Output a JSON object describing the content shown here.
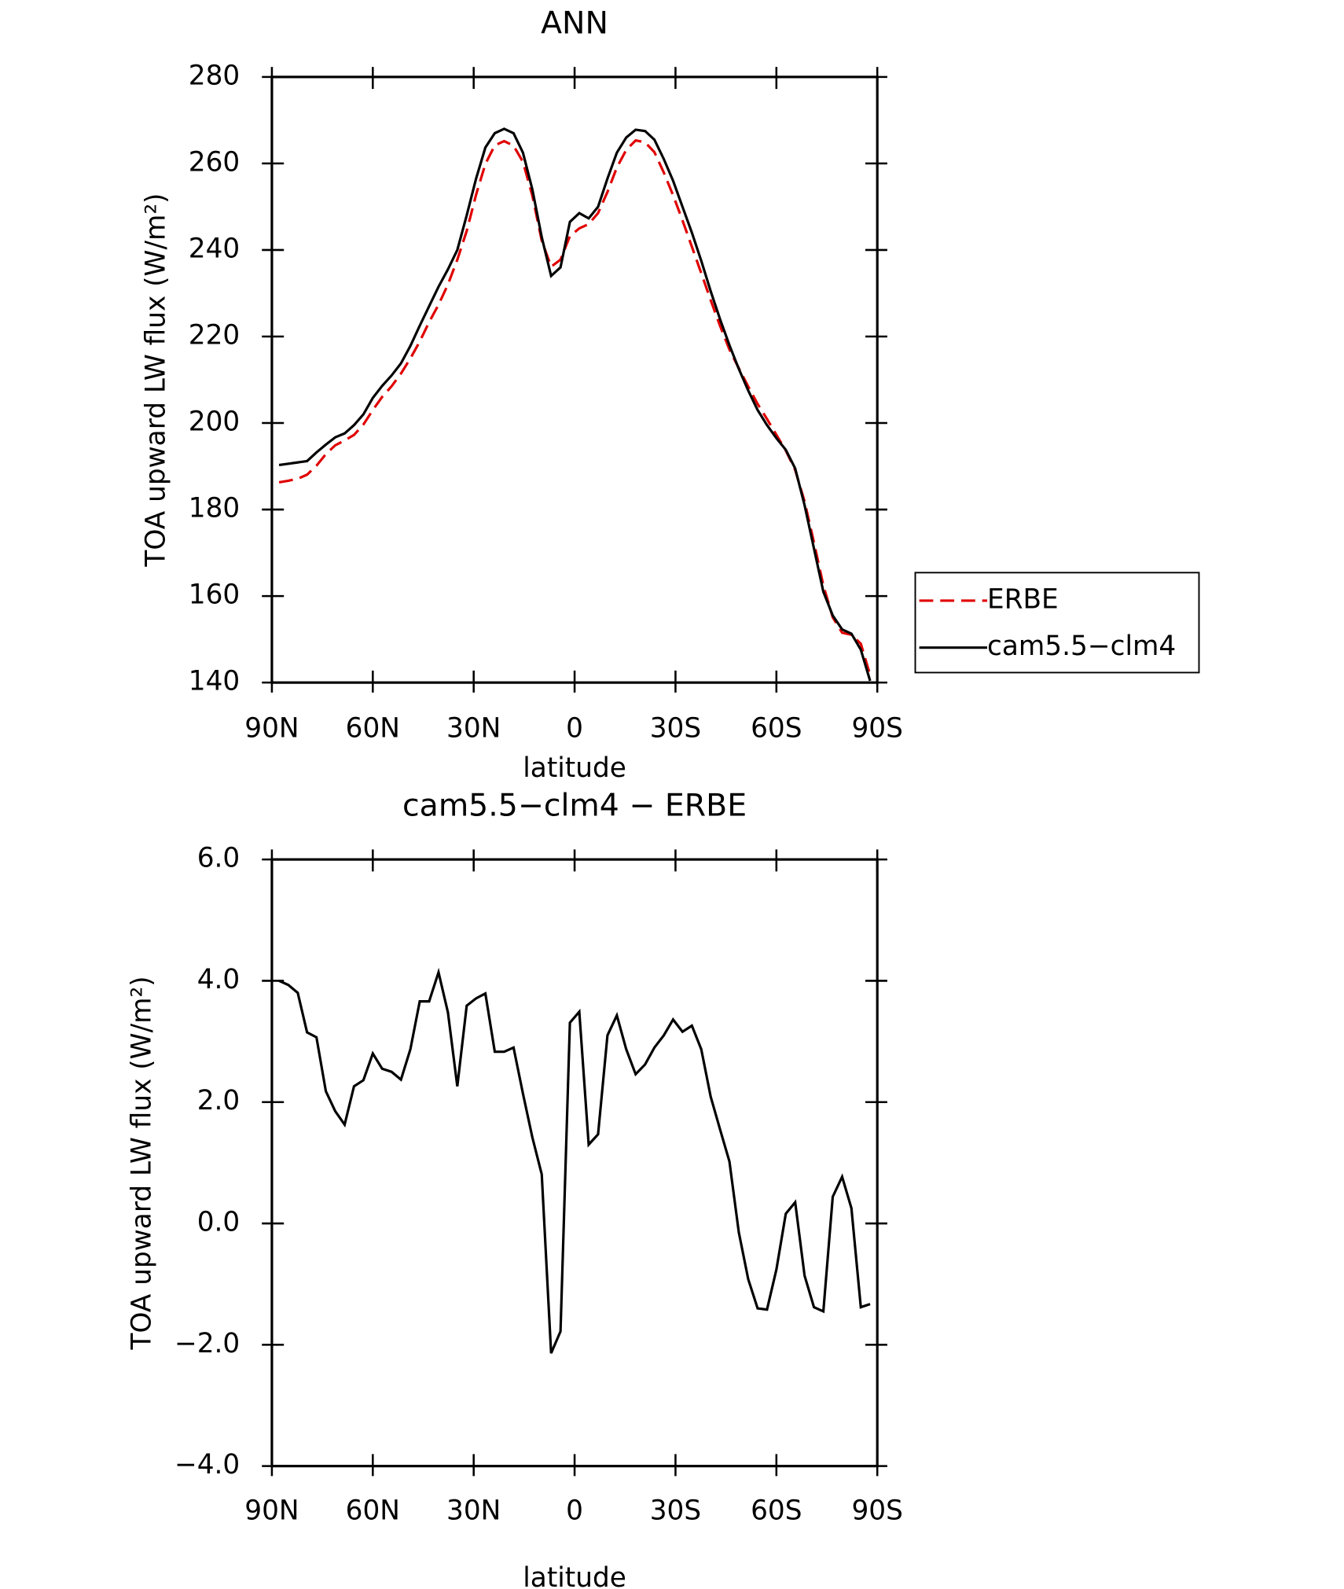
{
  "chart_data": [
    {
      "type": "line",
      "title": "ANN",
      "x_label": "latitude",
      "y_label": "TOA upward LW flux (W/m²)",
      "x": [
        87.86,
        85.1,
        82.31,
        79.53,
        76.74,
        73.95,
        71.16,
        68.37,
        65.58,
        62.79,
        60.0,
        57.21,
        54.42,
        51.63,
        48.84,
        46.05,
        43.26,
        40.47,
        37.67,
        34.88,
        32.09,
        29.3,
        26.51,
        23.72,
        20.93,
        18.14,
        15.35,
        12.56,
        9.77,
        6.98,
        4.19,
        1.4,
        -1.4,
        -4.19,
        -6.98,
        -9.77,
        -12.56,
        -15.35,
        -18.14,
        -20.93,
        -23.72,
        -26.51,
        -29.3,
        -32.09,
        -34.88,
        -37.67,
        -40.47,
        -43.26,
        -46.05,
        -48.84,
        -51.63,
        -54.42,
        -57.21,
        -60.0,
        -62.79,
        -65.58,
        -68.37,
        -71.16,
        -73.95,
        -76.74,
        -79.53,
        -82.31,
        -85.1,
        -87.86
      ],
      "series": [
        {
          "name": "ERBE",
          "color": "#e00000",
          "dash": true,
          "values": [
            186.3,
            186.67,
            187.1,
            188.05,
            190.13,
            192.82,
            194.85,
            195.97,
            197.24,
            199.64,
            203.0,
            206.05,
            208.5,
            211.43,
            214.93,
            218.84,
            223.34,
            227.36,
            232.02,
            237.74,
            244.41,
            252.79,
            259.91,
            264.17,
            265.17,
            264.1,
            260.36,
            252.58,
            242.19,
            236.14,
            237.78,
            243.19,
            245.01,
            246.0,
            248.53,
            253.4,
            259.07,
            263.13,
            265.34,
            264.88,
            262.6,
            257.9,
            252.64,
            246.84,
            240.74,
            234.63,
            228.41,
            222.45,
            216.98,
            212.65,
            208.42,
            204.4,
            200.92,
            197.26,
            193.64,
            189.15,
            181.86,
            172.38,
            162.45,
            155.06,
            151.53,
            151.05,
            148.98,
            141.73
          ]
        },
        {
          "name": "cam5.5−clm4",
          "color": "#000000",
          "dash": false,
          "values": [
            190.3,
            190.6,
            190.9,
            191.2,
            193.2,
            195,
            196.7,
            197.6,
            199.5,
            202,
            205.8,
            208.6,
            211,
            213.8,
            217.8,
            222.5,
            227,
            231.5,
            235.5,
            240,
            248,
            256.5,
            263.7,
            267,
            268,
            267,
            262.5,
            254,
            243,
            234,
            236,
            246.5,
            248.5,
            247.3,
            250,
            256.5,
            262.5,
            266,
            267.8,
            267.5,
            265.5,
            261,
            256,
            250,
            244,
            237.5,
            230.5,
            224,
            218,
            212.5,
            207.5,
            203,
            199.5,
            196.5,
            193.8,
            189.5,
            181,
            171,
            161,
            155.5,
            152.3,
            151.3,
            147.6,
            140.4
          ]
        }
      ],
      "xlim": [
        90,
        -90
      ],
      "xticks": [
        {
          "value": 90,
          "label": "90N"
        },
        {
          "value": 60,
          "label": "60N"
        },
        {
          "value": 30,
          "label": "30N"
        },
        0,
        {
          "value": -30,
          "label": "30S"
        },
        {
          "value": -60,
          "label": "60S"
        },
        {
          "value": -90,
          "label": "90S"
        }
      ],
      "ylim": [
        140,
        280
      ],
      "yticks": [
        140,
        160,
        180,
        200,
        220,
        240,
        260,
        280
      ],
      "legend": "right"
    },
    {
      "type": "line",
      "title": "cam5.5−clm4 − ERBE",
      "x_label": "latitude",
      "y_label": "TOA upward LW flux (W/m²)",
      "x": [
        87.86,
        85.1,
        82.31,
        79.53,
        76.74,
        73.95,
        71.16,
        68.37,
        65.58,
        62.79,
        60.0,
        57.21,
        54.42,
        51.63,
        48.84,
        46.05,
        43.26,
        40.47,
        37.67,
        34.88,
        32.09,
        29.3,
        26.51,
        23.72,
        20.93,
        18.14,
        15.35,
        12.56,
        9.77,
        6.98,
        4.19,
        1.4,
        -1.4,
        -4.19,
        -6.98,
        -9.77,
        -12.56,
        -15.35,
        -18.14,
        -20.93,
        -23.72,
        -26.51,
        -29.3,
        -32.09,
        -34.88,
        -37.67,
        -40.47,
        -43.26,
        -46.05,
        -48.84,
        -51.63,
        -54.42,
        -57.21,
        -60.0,
        -62.79,
        -65.58,
        -68.37,
        -71.16,
        -73.95,
        -76.74,
        -79.53,
        -82.31,
        -85.1,
        -87.86
      ],
      "series": [
        {
          "color": "#000000",
          "dash": false,
          "values": [
            4.0,
            3.93,
            3.8,
            3.15,
            3.07,
            2.18,
            1.85,
            1.63,
            2.26,
            2.36,
            2.8,
            2.55,
            2.5,
            2.37,
            2.87,
            3.66,
            3.66,
            4.14,
            3.48,
            2.26,
            3.59,
            3.71,
            3.79,
            2.83,
            2.83,
            2.9,
            2.14,
            1.42,
            0.81,
            -2.14,
            -1.78,
            3.31,
            3.49,
            1.3,
            1.47,
            3.1,
            3.43,
            2.87,
            2.46,
            2.62,
            2.9,
            3.1,
            3.36,
            3.16,
            3.26,
            2.87,
            2.09,
            1.55,
            1.02,
            -0.15,
            -0.92,
            -1.4,
            -1.42,
            -0.76,
            0.16,
            0.35,
            -0.86,
            -1.38,
            -1.45,
            0.44,
            0.77,
            0.25,
            -1.38,
            -1.33
          ]
        }
      ],
      "xlim": [
        90,
        -90
      ],
      "xticks": [
        {
          "value": 90,
          "label": "90N"
        },
        {
          "value": 60,
          "label": "60N"
        },
        {
          "value": 30,
          "label": "30N"
        },
        0,
        {
          "value": -30,
          "label": "30S"
        },
        {
          "value": -60,
          "label": "60S"
        },
        {
          "value": -90,
          "label": "90S"
        }
      ],
      "ylim": [
        -4,
        6
      ],
      "yticks": [
        {
          "value": -4,
          "label": "−4.0"
        },
        {
          "value": -2,
          "label": "−2.0"
        },
        {
          "value": 0,
          "label": "0.0"
        },
        {
          "value": 2,
          "label": "2.0"
        },
        {
          "value": 4,
          "label": "4.0"
        },
        {
          "value": 6,
          "label": "6.0"
        }
      ]
    }
  ]
}
